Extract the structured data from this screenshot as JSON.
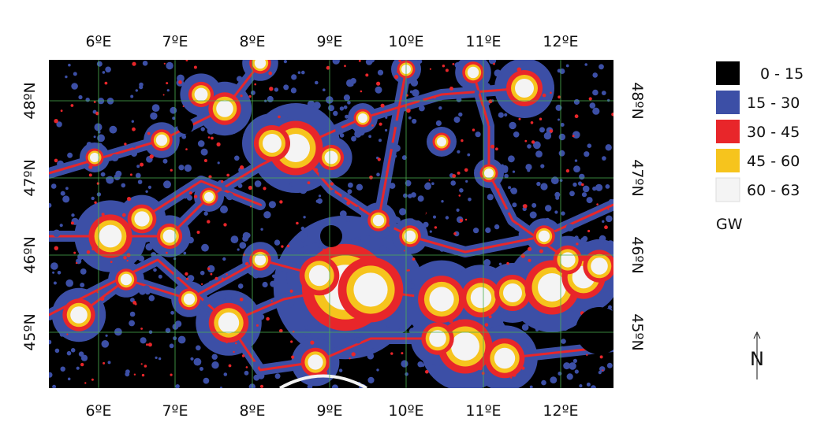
{
  "map": {
    "top_labels": [
      "6ºE",
      "7ºE",
      "8ºE",
      "9ºE",
      "10ºE",
      "11ºE",
      "12ºE"
    ],
    "bottom_labels": [
      "6ºE",
      "7ºE",
      "8ºE",
      "9ºE",
      "10ºE",
      "11ºE",
      "12ºE"
    ],
    "left_labels": [
      "48ºN",
      "47ºN",
      "46ºN",
      "45ºN"
    ],
    "right_labels": [
      "48ºN",
      "47ºN",
      "46ºN",
      "45ºN"
    ],
    "background_color": "#000000",
    "grid_color": "#4caf50"
  },
  "legend": {
    "items": [
      {
        "label": "0 - 15",
        "color": "#000000"
      },
      {
        "label": "15 - 30",
        "color": "#3c4fa6"
      },
      {
        "label": "30 - 45",
        "color": "#e8262a"
      },
      {
        "label": "45 - 60",
        "color": "#f6c41d"
      },
      {
        "label": "60 - 63",
        "color": "#f4f4f4"
      }
    ],
    "unit": "GW"
  },
  "north_arrow": {
    "label": "N"
  }
}
